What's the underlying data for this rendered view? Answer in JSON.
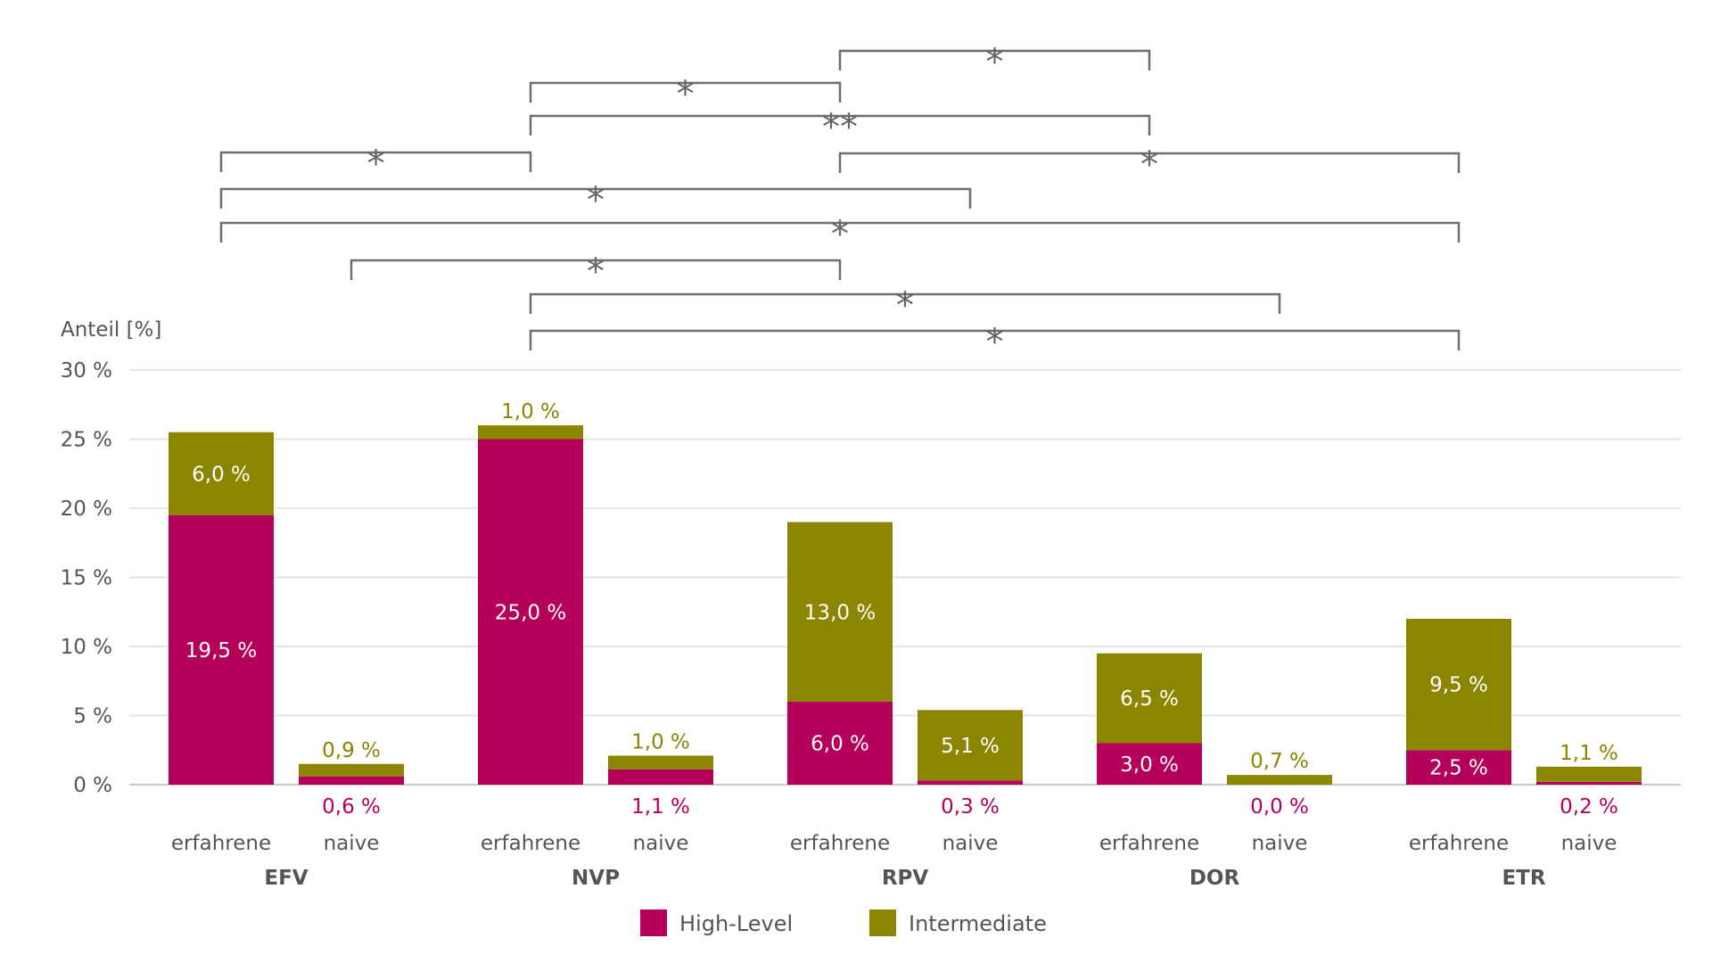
{
  "chart_data": {
    "type": "bar",
    "stacked": true,
    "ylabel": "Anteil [%]",
    "ylim": [
      0,
      30
    ],
    "yticks": [
      0,
      5,
      10,
      15,
      20,
      25,
      30
    ],
    "ytick_labels": [
      "0 %",
      "5 %",
      "10 %",
      "15 %",
      "20 %",
      "25 %",
      "30 %"
    ],
    "grid": true,
    "legend_position": "bottom-center",
    "groups": [
      "EFV",
      "NVP",
      "RPV",
      "DOR",
      "ETR"
    ],
    "subgroups": [
      "erfahrene",
      "naive"
    ],
    "categories": [
      "EFV erfahrene",
      "EFV naive",
      "NVP erfahrene",
      "NVP naive",
      "RPV erfahrene",
      "RPV naive",
      "DOR erfahrene",
      "DOR naive",
      "ETR erfahrene",
      "ETR naive"
    ],
    "series": [
      {
        "name": "High-Level",
        "color": "#b5005b",
        "values": [
          19.5,
          0.6,
          25.0,
          1.1,
          6.0,
          0.3,
          3.0,
          0.0,
          2.5,
          0.2
        ],
        "labels": [
          "19,5 %",
          "0,6 %",
          "25,0 %",
          "1,1 %",
          "6,0 %",
          "0,3 %",
          "3,0 %",
          "0,0 %",
          "2,5 %",
          "0,2 %"
        ]
      },
      {
        "name": "Intermediate",
        "color": "#8c8500",
        "values": [
          6.0,
          0.9,
          1.0,
          1.0,
          13.0,
          5.1,
          6.5,
          0.7,
          9.5,
          1.1
        ],
        "labels": [
          "6,0 %",
          "0,9 %",
          "1,0 %",
          "1,0 %",
          "13,0 %",
          "5,1 %",
          "6,5 %",
          "0,7 %",
          "9,5 %",
          "1,1 %"
        ]
      }
    ],
    "significance": [
      {
        "from": 4,
        "to": 6,
        "label": "*"
      },
      {
        "from": 2,
        "to": 4,
        "label": "*"
      },
      {
        "from": 2,
        "to": 6,
        "label": "**"
      },
      {
        "from": 0,
        "to": 2,
        "label": "*"
      },
      {
        "from": 4,
        "to": 8,
        "label": "*"
      },
      {
        "from": 0,
        "to": 5,
        "label": "*"
      },
      {
        "from": 0,
        "to": 8,
        "label": "*"
      },
      {
        "from": 1,
        "to": 4,
        "label": "*"
      },
      {
        "from": 2,
        "to": 7,
        "label": "*"
      },
      {
        "from": 2,
        "to": 8,
        "label": "*"
      }
    ]
  }
}
